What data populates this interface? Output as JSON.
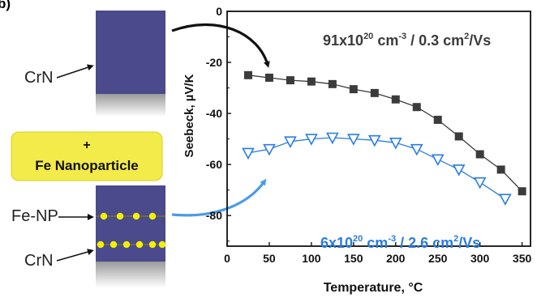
{
  "panel_letter": "b)",
  "schematic": {
    "crn_label": "CrN",
    "plus_symbol": "+",
    "nanoparticle_label": "Fe Nanoparticle",
    "fenp_label": "Fe-NP",
    "crn_label_2": "CrN",
    "film_color": "#4a4a8c",
    "dot_color": "#f5ef00",
    "box_color": "#f3eb4a"
  },
  "chart_data": {
    "type": "line",
    "title": "",
    "xlabel": "Temperature, °C",
    "ylabel": "Seebeck, µV/K",
    "xlim": [
      0,
      360
    ],
    "ylim": [
      -92,
      0
    ],
    "xticks": [
      0,
      50,
      100,
      150,
      200,
      250,
      300,
      350
    ],
    "yticks": [
      0,
      -20,
      -40,
      -60,
      -80
    ],
    "grid": false,
    "series": [
      {
        "marker": "square",
        "color": "#3b3b3b",
        "x": [
          25,
          50,
          75,
          100,
          125,
          150,
          175,
          200,
          225,
          250,
          275,
          300,
          325,
          350
        ],
        "y": [
          -25,
          -26,
          -27,
          -27.5,
          -28.5,
          -30.5,
          -32,
          -34.5,
          -37.5,
          -42.5,
          -49,
          -56,
          -62,
          -70.5
        ]
      },
      {
        "marker": "triangle-down",
        "color": "#2a7de1",
        "x": [
          25,
          50,
          75,
          100,
          125,
          150,
          175,
          200,
          225,
          250,
          275,
          300,
          330
        ],
        "y": [
          -55.5,
          -54,
          -51,
          -50,
          -49.5,
          -50,
          -50.5,
          -51.5,
          -54,
          -58,
          -62,
          -67,
          -73.5
        ]
      }
    ],
    "annotations": {
      "gray": {
        "base": "91x10",
        "sup1": "20",
        "mid": " cm",
        "sup2": "-3",
        "rest": " / 0.3 cm",
        "sup3": "2",
        "tail": "/Vs",
        "color": "#3b3b3b"
      },
      "blue": {
        "base": "6x10",
        "sup1": "20",
        "mid": " cm",
        "sup2": "-3",
        "rest": " / 2.6 cm",
        "sup3": "2",
        "tail": "/Vs",
        "color": "#2a7de1"
      }
    }
  }
}
